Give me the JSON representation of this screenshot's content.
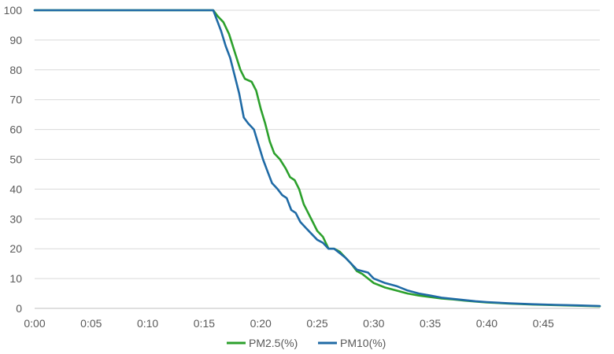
{
  "chart_data": {
    "type": "line",
    "title": "",
    "xlabel": "",
    "ylabel": "",
    "x_unit": "minutes",
    "xlim": [
      0,
      50
    ],
    "ylim": [
      0,
      100
    ],
    "x_ticks": [
      {
        "value": 0,
        "label": "0:00"
      },
      {
        "value": 5,
        "label": "0:05"
      },
      {
        "value": 10,
        "label": "0:10"
      },
      {
        "value": 15,
        "label": "0:15"
      },
      {
        "value": 20,
        "label": "0:20"
      },
      {
        "value": 25,
        "label": "0:25"
      },
      {
        "value": 30,
        "label": "0:30"
      },
      {
        "value": 35,
        "label": "0:35"
      },
      {
        "value": 40,
        "label": "0:40"
      },
      {
        "value": 45,
        "label": "0:45"
      }
    ],
    "y_ticks": [
      0,
      10,
      20,
      30,
      40,
      50,
      60,
      70,
      80,
      90,
      100
    ],
    "grid": "horizontal",
    "legend_position": "bottom",
    "series": [
      {
        "name": "PM2.5(%)",
        "color": "#2ca02c",
        "points": [
          [
            0,
            100
          ],
          [
            15.8,
            100
          ],
          [
            16.2,
            98
          ],
          [
            16.7,
            96
          ],
          [
            17.2,
            92
          ],
          [
            17.7,
            86
          ],
          [
            18.2,
            80
          ],
          [
            18.6,
            77
          ],
          [
            19.2,
            76
          ],
          [
            19.6,
            73
          ],
          [
            20.0,
            67
          ],
          [
            20.4,
            62
          ],
          [
            20.8,
            56
          ],
          [
            21.2,
            52
          ],
          [
            21.7,
            50
          ],
          [
            22.2,
            47
          ],
          [
            22.6,
            44
          ],
          [
            23.0,
            43
          ],
          [
            23.4,
            40
          ],
          [
            23.8,
            35
          ],
          [
            24.2,
            32
          ],
          [
            24.6,
            29
          ],
          [
            25.0,
            26
          ],
          [
            25.5,
            24
          ],
          [
            26.0,
            20
          ],
          [
            26.5,
            20
          ],
          [
            27.0,
            19
          ],
          [
            27.5,
            17
          ],
          [
            28.0,
            15
          ],
          [
            28.5,
            12.5
          ],
          [
            29.0,
            11.5
          ],
          [
            29.5,
            10
          ],
          [
            30.0,
            8.5
          ],
          [
            31.0,
            7
          ],
          [
            32.0,
            6
          ],
          [
            33.0,
            5
          ],
          [
            34.0,
            4.3
          ],
          [
            35.0,
            3.8
          ],
          [
            36.0,
            3.3
          ],
          [
            37.0,
            3
          ],
          [
            38.0,
            2.6
          ],
          [
            39.0,
            2.3
          ],
          [
            40.0,
            2
          ],
          [
            42.0,
            1.6
          ],
          [
            44.0,
            1.3
          ],
          [
            46.0,
            1.1
          ],
          [
            48.0,
            0.9
          ],
          [
            50.0,
            0.7
          ]
        ]
      },
      {
        "name": "PM10(%)",
        "color": "#1f6aa5",
        "points": [
          [
            0,
            100
          ],
          [
            15.8,
            100
          ],
          [
            16.1,
            97
          ],
          [
            16.5,
            93
          ],
          [
            16.9,
            88
          ],
          [
            17.3,
            84
          ],
          [
            17.7,
            78
          ],
          [
            18.1,
            72
          ],
          [
            18.5,
            64
          ],
          [
            18.9,
            62
          ],
          [
            19.4,
            60
          ],
          [
            19.8,
            55
          ],
          [
            20.2,
            50
          ],
          [
            20.6,
            46
          ],
          [
            21.0,
            42
          ],
          [
            21.5,
            40
          ],
          [
            21.9,
            38
          ],
          [
            22.3,
            37
          ],
          [
            22.7,
            33
          ],
          [
            23.1,
            32
          ],
          [
            23.5,
            29
          ],
          [
            24.0,
            27
          ],
          [
            24.5,
            25
          ],
          [
            25.0,
            23
          ],
          [
            25.5,
            22
          ],
          [
            26.0,
            20
          ],
          [
            26.5,
            20
          ],
          [
            27.0,
            18.5
          ],
          [
            27.5,
            17
          ],
          [
            28.0,
            15
          ],
          [
            28.5,
            13
          ],
          [
            29.0,
            12.5
          ],
          [
            29.5,
            12
          ],
          [
            30.0,
            10
          ],
          [
            31.0,
            8.5
          ],
          [
            32.0,
            7.5
          ],
          [
            33.0,
            6
          ],
          [
            34.0,
            5
          ],
          [
            35.0,
            4.3
          ],
          [
            36.0,
            3.6
          ],
          [
            37.0,
            3.2
          ],
          [
            38.0,
            2.8
          ],
          [
            39.0,
            2.4
          ],
          [
            40.0,
            2.1
          ],
          [
            42.0,
            1.7
          ],
          [
            44.0,
            1.4
          ],
          [
            46.0,
            1.2
          ],
          [
            48.0,
            1.0
          ],
          [
            50.0,
            0.8
          ]
        ]
      }
    ]
  }
}
